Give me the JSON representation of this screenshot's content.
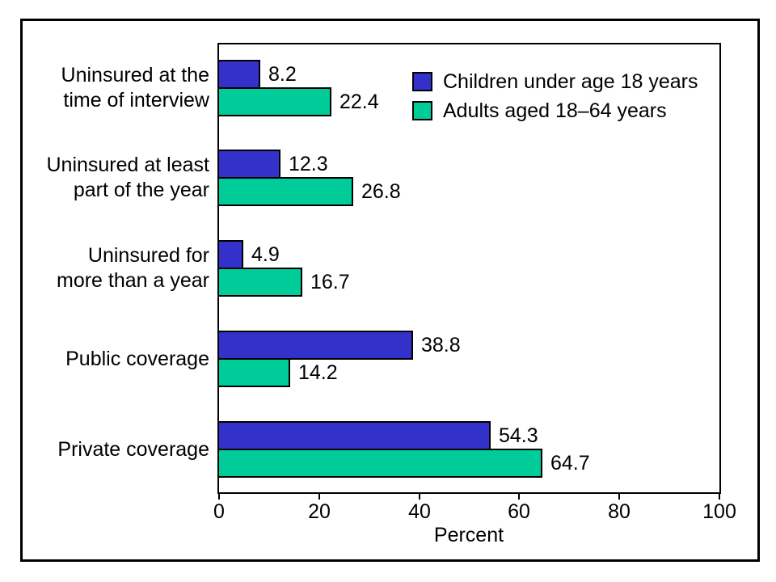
{
  "figure": {
    "background_color": "#FFFFFF",
    "frame_color": "#000000"
  },
  "chart_data": {
    "type": "bar",
    "orientation": "horizontal",
    "categories": [
      "Uninsured at the\ntime of interview",
      "Uninsured at least\npart of the year",
      "Uninsured for\nmore than a year",
      "Public coverage",
      "Private coverage"
    ],
    "series": [
      {
        "name": "Children under age 18 years",
        "color": "#3431CB",
        "values": [
          8.2,
          12.3,
          4.9,
          38.8,
          54.3
        ]
      },
      {
        "name": "Adults aged 18–64 years",
        "color": "#00CC99",
        "values": [
          22.4,
          26.8,
          16.7,
          14.2,
          64.7
        ]
      }
    ],
    "value_labels": [
      "8.2",
      "22.4",
      "12.3",
      "26.8",
      "4.9",
      "16.7",
      "38.8",
      "14.2",
      "54.3",
      "64.7"
    ],
    "xlabel": "Percent",
    "xticks": [
      "0",
      "20",
      "40",
      "60",
      "80",
      "100"
    ],
    "xtick_values": [
      0,
      20,
      40,
      60,
      80,
      100
    ],
    "xlim": [
      0,
      100
    ],
    "grid": false,
    "legend_position": "top-right-inside",
    "title": ""
  }
}
